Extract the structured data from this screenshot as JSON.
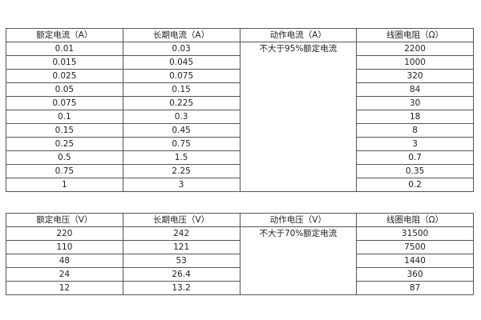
{
  "current_table": {
    "headers": [
      "额定电流（A）",
      "长期电流（A）",
      "动作电流（A）",
      "线圈电阻（Ω）"
    ],
    "action_value": "不大于95%额定电流",
    "rows": [
      [
        "0.01",
        "0.03",
        "2200"
      ],
      [
        "0.015",
        "0.045",
        "1000"
      ],
      [
        "0.025",
        "0.075",
        "320"
      ],
      [
        "0.05",
        "0.15",
        "84"
      ],
      [
        "0.075",
        "0.225",
        "30"
      ],
      [
        "0.1",
        "0.3",
        "18"
      ],
      [
        "0.15",
        "0.45",
        "8"
      ],
      [
        "0.25",
        "0.75",
        "3"
      ],
      [
        "0.5",
        "1.5",
        "0.7"
      ],
      [
        "0.75",
        "2.25",
        "0.35"
      ],
      [
        "1",
        "3",
        "0.2"
      ]
    ]
  },
  "voltage_table": {
    "headers": [
      "额定电压（V）",
      "长期电压（V）",
      "动作电压（V）",
      "线圈电阻（Ω）"
    ],
    "action_value": "不大于70%额定电流",
    "rows": [
      [
        "220",
        "242",
        "31500"
      ],
      [
        "110",
        "121",
        "7500"
      ],
      [
        "48",
        "53",
        "1440"
      ],
      [
        "24",
        "26.4",
        "360"
      ],
      [
        "12",
        "13.2",
        "87"
      ]
    ]
  }
}
